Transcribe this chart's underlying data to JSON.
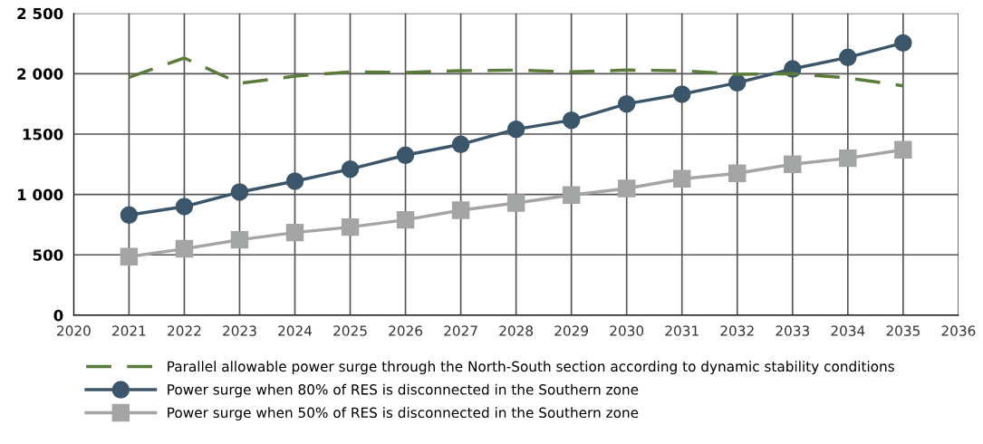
{
  "chart_data": {
    "type": "line",
    "x": [
      2021,
      2022,
      2023,
      2024,
      2025,
      2026,
      2027,
      2028,
      2029,
      2030,
      2031,
      2032,
      2033,
      2034,
      2035
    ],
    "series": [
      {
        "name": "Parallel allowable power surge through the North-South section according to dynamic stability conditions",
        "color": "#5b7b3a",
        "line_style": "dashed",
        "marker": "none",
        "values": [
          1970,
          2130,
          1920,
          1980,
          2015,
          2010,
          2025,
          2030,
          2015,
          2030,
          2025,
          1995,
          2000,
          1965,
          1900
        ]
      },
      {
        "name": "Power surge when 80% of RES is disconnected in the Southern zone",
        "color": "#3b566a",
        "line_style": "solid",
        "marker": "circle",
        "values": [
          830,
          900,
          1020,
          1110,
          1210,
          1325,
          1415,
          1540,
          1615,
          1750,
          1830,
          1925,
          2040,
          2135,
          2255
        ]
      },
      {
        "name": "Power surge when 50% of RES is disconnected in the Southern zone",
        "color": "#a3a5a4",
        "line_style": "solid",
        "marker": "square",
        "values": [
          485,
          550,
          625,
          685,
          730,
          790,
          870,
          930,
          995,
          1050,
          1130,
          1175,
          1250,
          1300,
          1370
        ]
      }
    ],
    "xlim": [
      2020,
      2036
    ],
    "xticks": [
      2020,
      2021,
      2022,
      2023,
      2024,
      2025,
      2026,
      2027,
      2028,
      2029,
      2030,
      2031,
      2032,
      2033,
      2034,
      2035,
      2036
    ],
    "ylim": [
      0,
      2500
    ],
    "yticks": [
      {
        "value": 0,
        "label": "0"
      },
      {
        "value": 500,
        "label": "500"
      },
      {
        "value": 1000,
        "label": "1 000"
      },
      {
        "value": 1500,
        "label": "1500"
      },
      {
        "value": 2000,
        "label": "2 000"
      },
      {
        "value": 2500,
        "label": "2 500"
      }
    ],
    "grid": true,
    "legend": "bottom"
  }
}
